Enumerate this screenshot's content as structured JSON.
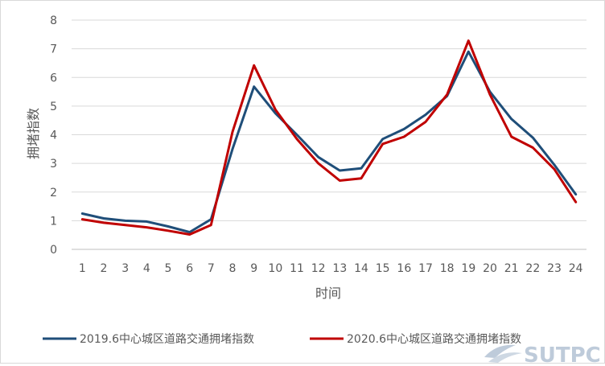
{
  "chart_data": {
    "type": "line",
    "title": "",
    "xlabel": "时间",
    "ylabel": "拥堵指数",
    "x": [
      1,
      2,
      3,
      4,
      5,
      6,
      7,
      8,
      9,
      10,
      11,
      12,
      13,
      14,
      15,
      16,
      17,
      18,
      19,
      20,
      21,
      22,
      23,
      24
    ],
    "ylim": [
      0,
      8
    ],
    "yticks": [
      0,
      1,
      2,
      3,
      4,
      5,
      6,
      7,
      8
    ],
    "grid": "horizontal",
    "legend_position": "bottom",
    "series": [
      {
        "name": "2019.6中心城区道路交通拥堵指数",
        "color": "#1f4e79",
        "values": [
          1.25,
          1.08,
          1.0,
          0.97,
          0.8,
          0.6,
          1.05,
          3.5,
          5.68,
          4.75,
          4.0,
          3.22,
          2.75,
          2.83,
          3.85,
          4.2,
          4.7,
          5.35,
          6.9,
          5.5,
          4.55,
          3.9,
          2.95,
          1.92
        ]
      },
      {
        "name": "2020.6中心城区道路交通拥堵指数",
        "color": "#c00000",
        "values": [
          1.05,
          0.93,
          0.85,
          0.77,
          0.65,
          0.52,
          0.85,
          4.1,
          6.42,
          4.88,
          3.85,
          3.0,
          2.4,
          2.48,
          3.68,
          3.93,
          4.45,
          5.4,
          7.28,
          5.4,
          3.93,
          3.55,
          2.8,
          1.65
        ]
      }
    ]
  },
  "watermark": {
    "text": "SUTPC",
    "icon": "sutpc-logo-icon"
  }
}
